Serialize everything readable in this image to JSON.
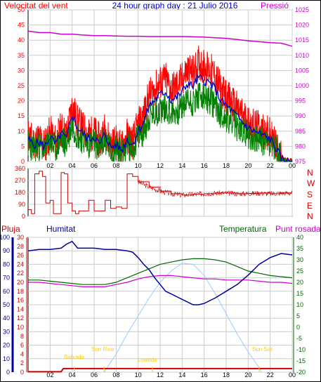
{
  "header": {
    "title": "24 hour graph day : 21 Julio 2016",
    "left_label": "Velocitat del vent",
    "right_label": "Pressió"
  },
  "colors": {
    "wind": "#ff0000",
    "gust_dark": "#008000",
    "average": "#0000cc",
    "pressure": "#cc00cc",
    "direction": "#cc0000",
    "rain": "#cc0000",
    "humidity": "#000099",
    "temperature": "#006600",
    "dewpoint": "#cc00cc",
    "sun": "#99ccff",
    "annotations": "#ffcc00",
    "grid": "#cccccc",
    "frame": "#000000"
  },
  "x_ticks": [
    "02",
    "04",
    "06",
    "08",
    "10",
    "12",
    "14",
    "16",
    "18",
    "20",
    "22",
    "00"
  ],
  "direction_labels": [
    "N",
    "W",
    "S",
    "E",
    "N"
  ],
  "bottom_legend": {
    "rain": "Pluja",
    "humidity": "Humitat",
    "temperature": "Temperatura",
    "dewpoint": "Punt rosada"
  },
  "annotations": {
    "low_tide": "Baixada",
    "sun_rise": "Sun Rise",
    "low_tide_2": "Lowtide",
    "sun_set": "Sun Set"
  },
  "chart_data": [
    {
      "type": "line",
      "title": "24 hour graph day : 21 Julio 2016",
      "x_unit": "hour",
      "xlim": [
        0,
        24
      ],
      "ylim_left": [
        0,
        50
      ],
      "ylim_right": [
        975,
        1025
      ],
      "y_ticks_left": [
        0,
        5,
        10,
        15,
        20,
        25,
        30,
        35,
        40,
        45,
        50
      ],
      "y_ticks_right": [
        975,
        980,
        985,
        990,
        995,
        1000,
        1005,
        1010,
        1015,
        1020,
        1025
      ],
      "series": [
        {
          "name": "Velocitat del vent",
          "axis": "left",
          "x": [
            0,
            0.5,
            1,
            1.5,
            2,
            2.5,
            3,
            3.5,
            4,
            4.5,
            5,
            5.5,
            6,
            6.5,
            7,
            7.5,
            8,
            8.5,
            9,
            9.5,
            10,
            10.5,
            11,
            11.5,
            12,
            12.5,
            13,
            13.5,
            14,
            14.5,
            15,
            15.5,
            16,
            16.5,
            17,
            17.5,
            18,
            18.5,
            19,
            19.5,
            20,
            20.5,
            21,
            21.5,
            22,
            22.5,
            23,
            23.5,
            24
          ],
          "y": [
            8,
            6,
            7,
            5,
            9,
            6,
            10,
            8,
            17,
            12,
            10,
            8,
            9,
            6,
            10,
            5,
            6,
            4,
            8,
            6,
            11,
            14,
            20,
            22,
            24,
            25,
            22,
            23,
            25,
            28,
            27,
            30,
            29,
            28,
            26,
            22,
            20,
            18,
            16,
            14,
            12,
            11,
            10,
            9,
            8,
            5,
            1,
            0,
            0
          ]
        },
        {
          "name": "Pressió",
          "axis": "right",
          "x": [
            0,
            1,
            2,
            3,
            4,
            5,
            6,
            7,
            8,
            9,
            10,
            11,
            12,
            13,
            14,
            15,
            16,
            17,
            18,
            19,
            20,
            21,
            22,
            23,
            24
          ],
          "y": [
            1018,
            1017.5,
            1017.5,
            1017,
            1017,
            1016.7,
            1016.5,
            1016.5,
            1016.4,
            1016.3,
            1016.3,
            1016.2,
            1016.2,
            1016.2,
            1016.2,
            1016.1,
            1016,
            1015.8,
            1015.6,
            1015.2,
            1014.8,
            1014.5,
            1014.2,
            1014,
            1013
          ]
        }
      ]
    },
    {
      "type": "line",
      "xlim": [
        0,
        24
      ],
      "ylim": [
        0,
        360
      ],
      "y_ticks": [
        0,
        90,
        180,
        270,
        360
      ],
      "series": [
        {
          "name": "direction",
          "x": [
            0,
            0.3,
            0.6,
            1.0,
            1.3,
            1.6,
            2.0,
            2.3,
            2.6,
            3.0,
            3.3,
            3.6,
            4.0,
            4.3,
            4.6,
            5.0,
            5.5,
            6.0,
            6.5,
            7.0,
            7.5,
            8.0,
            8.5,
            9.0,
            9.5,
            10,
            11,
            12,
            13,
            14,
            15,
            16,
            17,
            18,
            19,
            20,
            21,
            22,
            23,
            24
          ],
          "y": [
            50,
            20,
            320,
            340,
            300,
            100,
            120,
            20,
            20,
            330,
            320,
            100,
            40,
            20,
            40,
            40,
            120,
            40,
            40,
            120,
            60,
            70,
            60,
            320,
            300,
            260,
            220,
            190,
            170,
            160,
            165,
            170,
            175,
            175,
            170,
            172,
            175,
            170,
            175,
            175
          ]
        }
      ]
    },
    {
      "type": "line",
      "xlim": [
        0,
        24
      ],
      "ylim_left": [
        0,
        100
      ],
      "ylim_right": [
        -20,
        40
      ],
      "y_ticks_left": [
        0,
        10,
        20,
        30,
        40,
        50,
        60,
        70,
        80,
        90,
        100
      ],
      "y_ticks_rain": [
        0,
        2,
        4,
        6,
        8,
        10,
        12,
        14,
        16,
        18,
        20,
        22,
        24,
        26,
        28,
        30
      ],
      "y_ticks_right": [
        -20,
        -15,
        -10,
        -5,
        0,
        5,
        10,
        15,
        20,
        25,
        30,
        35,
        40
      ],
      "series": [
        {
          "name": "Humitat",
          "axis": "left",
          "x": [
            0,
            1,
            2,
            3,
            3.5,
            4,
            4.5,
            5,
            6,
            7,
            8,
            9,
            9.5,
            10,
            10.5,
            11,
            11.5,
            12,
            12.5,
            13,
            14,
            15,
            15.5,
            16,
            17,
            18,
            19,
            20,
            21,
            22,
            23,
            24
          ],
          "y": [
            90,
            91,
            91,
            92,
            95,
            97,
            92,
            92,
            92,
            91,
            91,
            90,
            89,
            85,
            80,
            76,
            70,
            65,
            60,
            58,
            54,
            50,
            50,
            51,
            55,
            60,
            65,
            72,
            80,
            85,
            88,
            87
          ]
        },
        {
          "name": "Temperatura",
          "axis": "right",
          "x": [
            0,
            1,
            2,
            3,
            4,
            5,
            6,
            7,
            8,
            9,
            10,
            11,
            12,
            13,
            14,
            15,
            16,
            17,
            18,
            19,
            20,
            21,
            22,
            23,
            24
          ],
          "y": [
            21,
            21,
            20.5,
            20,
            19.5,
            19,
            19,
            19,
            20,
            22,
            24,
            26,
            28,
            29,
            30,
            30.5,
            30.5,
            30,
            29,
            27,
            25,
            24,
            23,
            22.5,
            22
          ]
        },
        {
          "name": "Punt rosada",
          "axis": "right",
          "x": [
            0,
            1,
            2,
            3,
            4,
            5,
            6,
            7,
            8,
            9,
            10,
            11,
            12,
            13,
            14,
            15,
            16,
            17,
            18,
            19,
            20,
            21,
            22,
            23,
            24
          ],
          "y": [
            20,
            20,
            19.5,
            19,
            18.5,
            18,
            18,
            18,
            19,
            20,
            21.5,
            22.5,
            23,
            23,
            22.5,
            22,
            21.5,
            21.5,
            21,
            21,
            21,
            20.5,
            20,
            20,
            19.5
          ]
        },
        {
          "name": "Pluja",
          "axis": "rain",
          "x": [
            0,
            3,
            3.2,
            24
          ],
          "y": [
            0.1,
            0.1,
            0.8,
            0.8
          ]
        },
        {
          "name": "sun",
          "axis": "right",
          "x": [
            6.9,
            8,
            9,
            10,
            11,
            12,
            13,
            14,
            15,
            16,
            17,
            18,
            19,
            20,
            21,
            21.2
          ],
          "y": [
            -20,
            -12,
            -3,
            5,
            13,
            20,
            25,
            28.5,
            28,
            23,
            15,
            6,
            -3,
            -11,
            -18,
            -20
          ]
        }
      ]
    }
  ]
}
